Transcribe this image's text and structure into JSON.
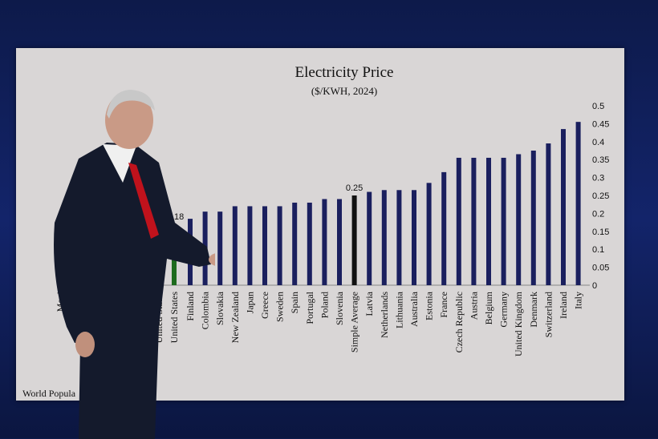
{
  "chart_data": {
    "type": "bar",
    "title": "Electricity Price",
    "subtitle": "($/KWH, 2024)",
    "ylim": [
      0,
      0.5
    ],
    "yticks": [
      "0",
      "0.05",
      "0.1",
      "0.15",
      "0.2",
      "0.25",
      "0.3",
      "0.35",
      "0.4",
      "0.45",
      "0.5"
    ],
    "y_axis_position": "right",
    "grid": false,
    "categories": [
      "Mexi",
      "United States",
      "United States",
      "Finland",
      "Colombia",
      "Slovakia",
      "New Zealand",
      "Japan",
      "Greece",
      "Sweden",
      "Spain",
      "Portugal",
      "Poland",
      "Slovenia",
      "Simple Average",
      "Latvia",
      "Netherlands",
      "Lithuania",
      "Australia",
      "Estonia",
      "France",
      "Czech Republic",
      "Austria",
      "Belgium",
      "Germany",
      "United Kingdom",
      "Denmark",
      "Switzerland",
      "Ireland",
      "Italy"
    ],
    "values": [
      null,
      0.17,
      0.17,
      0.185,
      0.205,
      0.205,
      0.22,
      0.22,
      0.22,
      0.22,
      0.23,
      0.23,
      0.24,
      0.24,
      0.25,
      0.26,
      0.265,
      0.265,
      0.265,
      0.285,
      0.315,
      0.355,
      0.355,
      0.355,
      0.355,
      0.365,
      0.375,
      0.395,
      0.435,
      0.455
    ],
    "colors": [
      "#1a1f5e",
      "#1d6b1d",
      "#1d6b1d",
      "#1a1f5e",
      "#1a1f5e",
      "#1a1f5e",
      "#1a1f5e",
      "#1a1f5e",
      "#1a1f5e",
      "#1a1f5e",
      "#1a1f5e",
      "#1a1f5e",
      "#1a1f5e",
      "#1a1f5e",
      "#111111",
      "#1a1f5e",
      "#1a1f5e",
      "#1a1f5e",
      "#1a1f5e",
      "#1a1f5e",
      "#1a1f5e",
      "#1a1f5e",
      "#1a1f5e",
      "#1a1f5e",
      "#1a1f5e",
      "#1a1f5e",
      "#1a1f5e",
      "#1a1f5e",
      "#1a1f5e",
      "#1a1f5e"
    ],
    "data_labels": {
      "United States": ".1.18",
      "Simple Average": "0.25"
    },
    "footer": "World Popula"
  }
}
